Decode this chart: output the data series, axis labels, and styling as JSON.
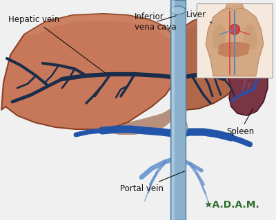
{
  "background_color": "#f0f0f0",
  "liver_left_color": "#c8785a",
  "liver_left_edge": "#8B4020",
  "liver_right_color": "#9a5040",
  "liver_right_edge": "#6a2010",
  "liver_top_color": "#b06848",
  "vein_dark": "#1a2d4a",
  "vein_blue": "#2255aa",
  "ivc_color": "#8ab0cc",
  "ivc_edge": "#5080a0",
  "ivc_highlight": "#c0d8e8",
  "portal_color": "#2255aa",
  "portal_light": "#4488cc",
  "spleen_color": "#7a3545",
  "spleen_edge": "#4a1525",
  "labels": {
    "hepatic_vein": "Hepatic vein",
    "inferior_vena_cava": "Inferior\nvena cava",
    "liver": "Liver",
    "portal_vein": "Portal vein",
    "spleen": "Spleen"
  },
  "label_fontsize": 8.5,
  "adam_color": "#2d6e2d",
  "adam_fontsize": 10
}
